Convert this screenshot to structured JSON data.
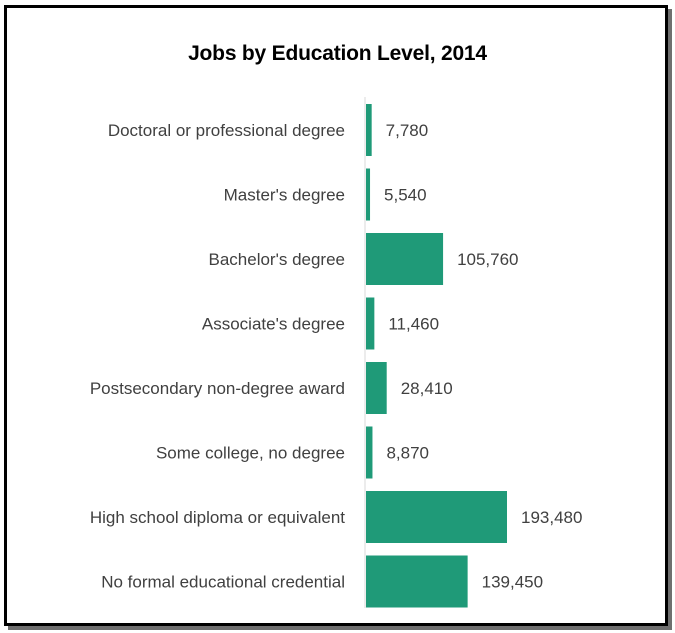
{
  "chart_data": {
    "type": "bar",
    "orientation": "horizontal",
    "title": "Jobs by Education Level, 2014",
    "xlabel": "",
    "ylabel": "",
    "categories": [
      "Doctoral or professional degree",
      "Master's degree",
      "Bachelor's degree",
      "Associate's degree",
      "Postsecondary non-degree award",
      "Some college, no degree",
      "High school diploma or equivalent",
      "No formal educational credential"
    ],
    "values": [
      7780,
      5540,
      105760,
      11460,
      28410,
      8870,
      193480,
      139450
    ],
    "value_labels": [
      "7,780",
      "5,540",
      "105,760",
      "11,460",
      "28,410",
      "8,870",
      "193,480",
      "139,450"
    ],
    "grid": false,
    "legend": "none",
    "bar_color": "#1f9a78"
  }
}
